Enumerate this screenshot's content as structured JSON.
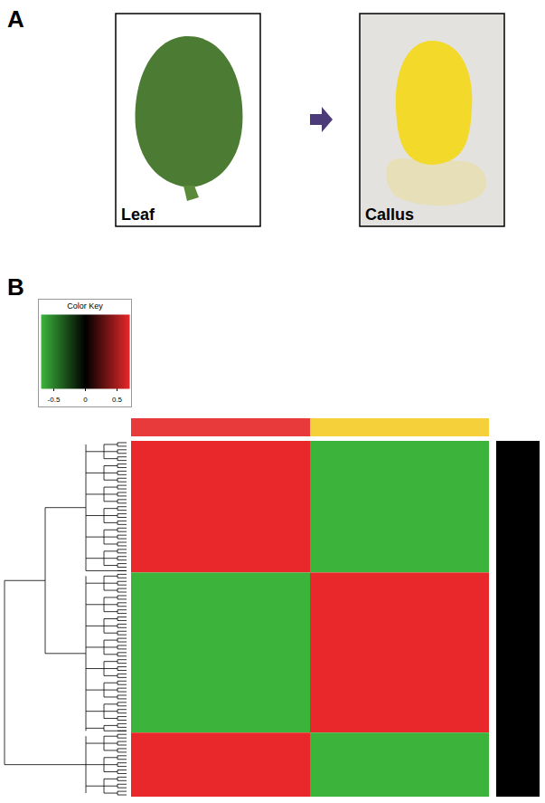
{
  "panel_a": {
    "label": "A",
    "images": [
      "Leaf",
      "Callus"
    ]
  },
  "chart_data": {
    "type": "heatmap",
    "label": "B",
    "tick_labels": false,
    "color_key": {
      "title": "Color Key",
      "range": [
        -0.7,
        0.7
      ],
      "ticks": [
        -0.5,
        0,
        0.5
      ],
      "colors": [
        "#3cb43c",
        "#000000",
        "#e8282a"
      ]
    },
    "column_colors": [
      "#e83a3a",
      "#f5d03b"
    ],
    "row_groups": [
      {
        "rows": 37,
        "values": [
          0.7,
          -0.7
        ]
      },
      {
        "rows": 45,
        "values": [
          -0.7,
          0.7
        ]
      },
      {
        "rows": 18,
        "values": [
          0.7,
          -0.7
        ]
      }
    ]
  }
}
